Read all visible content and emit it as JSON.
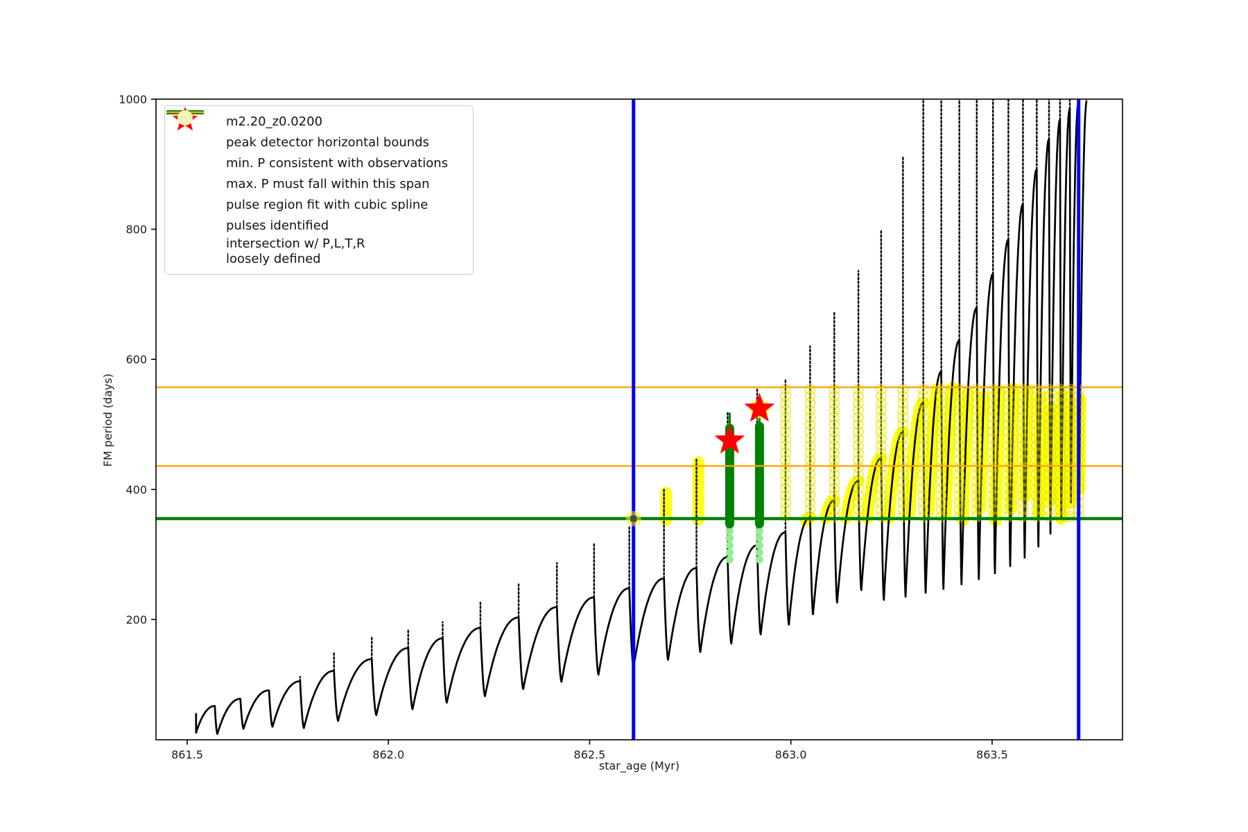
{
  "chart_data": {
    "type": "line",
    "title": "",
    "xlabel": "star_age (Myr)",
    "ylabel": "FM period (days)",
    "xlim": [
      861.4225,
      863.824
    ],
    "ylim": [
      15,
      1000
    ],
    "grid": false,
    "legend_position": "upper left",
    "xticks": [
      861.5,
      862.0,
      862.5,
      863.0,
      863.5
    ],
    "xtick_labels": [
      "861.5",
      "862.0",
      "862.5",
      "863.0",
      "863.5"
    ],
    "yticks": [
      200,
      400,
      600,
      800,
      1000
    ],
    "ytick_labels": [
      "200",
      "400",
      "600",
      "800",
      "1000"
    ],
    "series_label": "m2.20_z0.0200",
    "peak_detector_bounds_x": [
      862.609,
      863.715
    ],
    "min_P_consistent_with_observations": 355,
    "max_P_span": [
      436,
      557
    ],
    "pulses_identified": [
      {
        "x": 862.848,
        "y": 475
      },
      {
        "x": 862.922,
        "y": 524
      }
    ],
    "crossing_marker": {
      "x": 862.609,
      "y": 355
    },
    "start_x": 861.522,
    "cycles_format": [
      "x_end",
      "trough_at_start",
      "smooth_crest",
      "spike_top",
      "flags"
    ],
    "cycles": [
      [
        861.575,
        26,
        67,
        67,
        ""
      ],
      [
        861.64,
        24,
        78,
        78,
        ""
      ],
      [
        861.712,
        32,
        91,
        91,
        ""
      ],
      [
        861.79,
        35,
        105,
        112,
        ""
      ],
      [
        861.875,
        33,
        121,
        148,
        ""
      ],
      [
        861.97,
        44,
        139,
        172,
        ""
      ],
      [
        862.06,
        53,
        156,
        186,
        ""
      ],
      [
        862.145,
        62,
        171,
        196,
        ""
      ],
      [
        862.24,
        72,
        187,
        226,
        ""
      ],
      [
        862.335,
        82,
        203,
        254,
        ""
      ],
      [
        862.43,
        93,
        219,
        287,
        ""
      ],
      [
        862.522,
        104,
        234,
        319,
        ""
      ],
      [
        862.609,
        115,
        248,
        343,
        ""
      ],
      [
        862.695,
        126,
        263,
        400,
        "pill"
      ],
      [
        862.775,
        138,
        279,
        447,
        "pill"
      ],
      [
        862.852,
        150,
        296,
        518,
        "pulse"
      ],
      [
        862.925,
        163,
        314,
        555,
        "pulse"
      ],
      [
        862.995,
        177,
        334,
        570,
        "yc,arch"
      ],
      [
        863.055,
        192,
        357,
        620,
        "yc,arch"
      ],
      [
        863.115,
        208,
        383,
        672,
        "yc,arch"
      ],
      [
        863.175,
        226,
        413,
        736,
        "yc,arch"
      ],
      [
        863.231,
        245,
        448,
        800,
        "yc,arch"
      ],
      [
        863.285,
        230,
        488,
        913,
        "yc,arch"
      ],
      [
        863.335,
        235,
        533,
        1000,
        "yc,arch"
      ],
      [
        863.379,
        241,
        581,
        1000,
        "yc,arch"
      ],
      [
        863.424,
        247,
        629,
        1000,
        "yc,arch"
      ],
      [
        863.467,
        254,
        679,
        1000,
        "yc,arch"
      ],
      [
        863.507,
        262,
        731,
        1000,
        "yc,arch"
      ],
      [
        863.545,
        271,
        784,
        1000,
        "yc,arch"
      ],
      [
        863.581,
        282,
        838,
        1000,
        "yc,arch"
      ],
      [
        863.615,
        295,
        892,
        1000,
        "yc,arch"
      ],
      [
        863.645,
        312,
        938,
        1000,
        "yc,arch"
      ],
      [
        863.672,
        332,
        968,
        1000,
        "yc,arch"
      ],
      [
        863.696,
        355,
        985,
        1000,
        "yc,arch"
      ],
      [
        863.717,
        380,
        994,
        1000,
        "yc,arch"
      ],
      [
        863.738,
        400,
        998,
        1000,
        "arch"
      ]
    ],
    "yellow_pills": [
      {
        "x": 862.69,
        "y0": 353,
        "y1": 400
      },
      {
        "x": 862.77,
        "y0": 353,
        "y1": 447
      }
    ],
    "yellow_column_band": [
      355,
      557
    ],
    "pulse_region_columns": [
      {
        "x": 862.848,
        "solid": [
          347,
          494
        ],
        "tip": 518,
        "spline_dots": [
          292,
          348
        ],
        "star_y": 475,
        "halo_r": 9
      },
      {
        "x": 862.922,
        "solid": [
          347,
          497
        ],
        "tip": 520,
        "spline_dots": [
          292,
          350
        ],
        "star_y": 524,
        "halo_r": 14
      }
    ],
    "colors": {
      "series": "#000000",
      "peak_bounds": "#0000ff",
      "min_P": "#008000",
      "max_P_span": "#ffa500",
      "spline_dots": "#90ee90",
      "pulses": "#ff0000",
      "intersection": "#ffff00",
      "intersection_pale": "#f5f5b8"
    }
  },
  "legend": {
    "items": [
      {
        "label": "m2.20_z0.0200",
        "type": "line-dot",
        "color": "#000000"
      },
      {
        "label": "peak detector horizontal bounds",
        "type": "thick-line",
        "color": "#0000ff"
      },
      {
        "label": "min. P consistent with observations",
        "type": "thick-line",
        "color": "#008000"
      },
      {
        "label": "max. P must fall within this span",
        "type": "line",
        "color": "#ffa500"
      },
      {
        "label": "pulse region fit with cubic spline",
        "type": "dot",
        "color": "#90ee90"
      },
      {
        "label": "pulses identified",
        "type": "star",
        "color": "#ff0000"
      },
      {
        "label": "intersection w/ P,L,T,R\nloosely defined",
        "type": "big-dot",
        "color": "#f5f5b8"
      }
    ]
  }
}
